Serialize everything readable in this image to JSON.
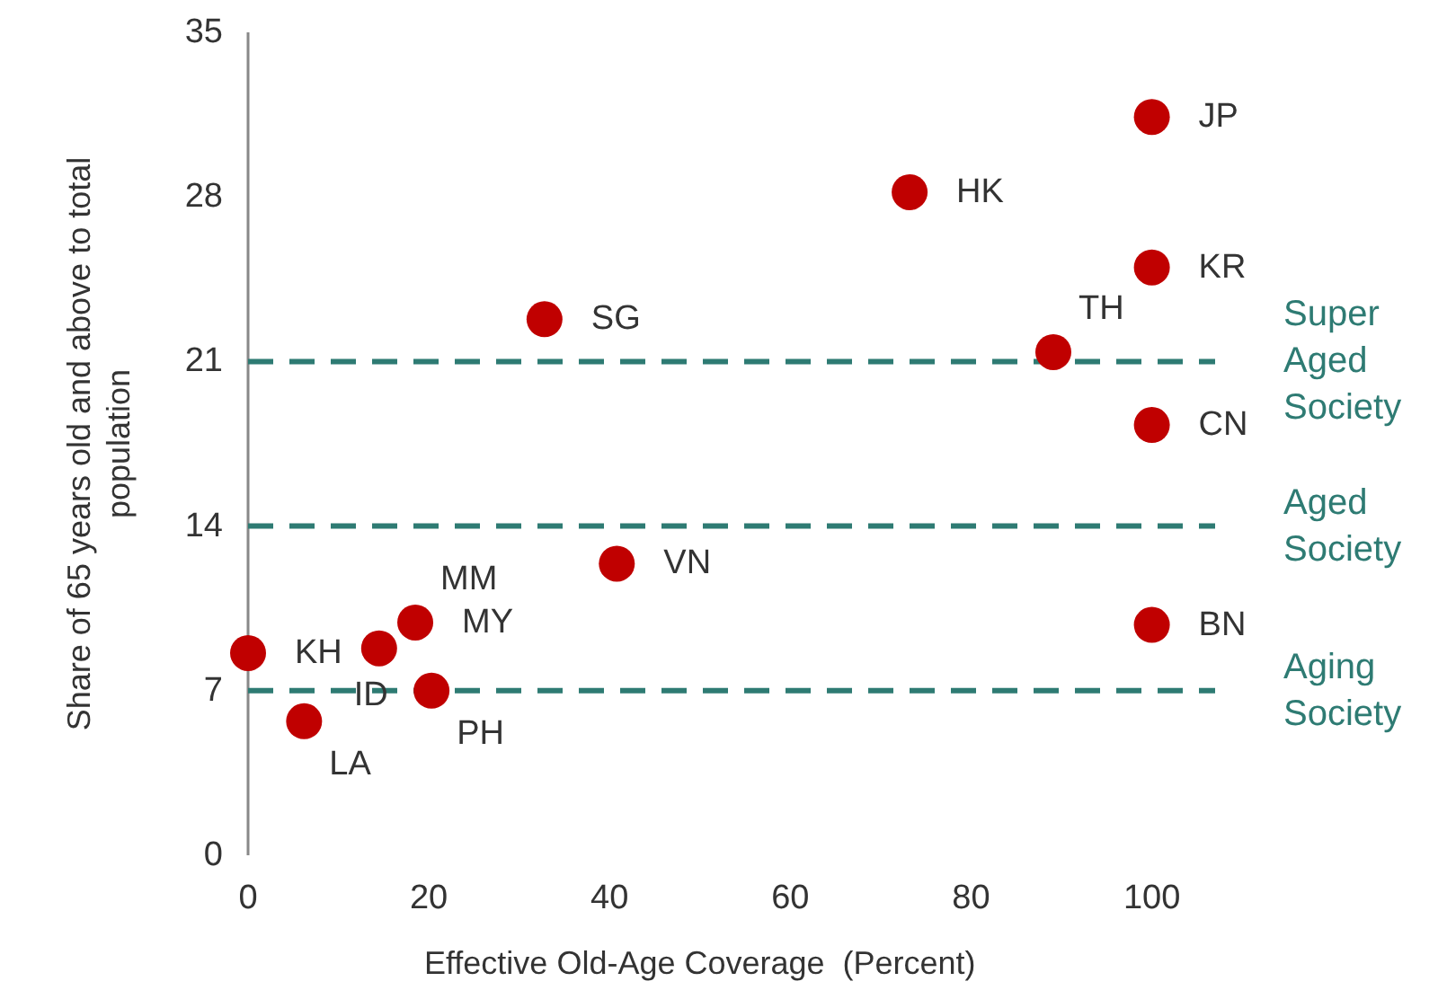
{
  "chart_data": {
    "type": "scatter",
    "xlabel": "Effective Old-Age Coverage  (Percent)",
    "ylabel": "Share of 65 years old and above to total population",
    "x": [
      100,
      73.2,
      100,
      32.8,
      89.1,
      100,
      40.8,
      100,
      18.5,
      14.5,
      0,
      20.3,
      6.2
    ],
    "series": [
      {
        "color": "#c00000",
        "values": [
          31.4,
          28.2,
          25.0,
          22.8,
          21.4,
          18.3,
          12.4,
          9.8,
          9.9,
          8.8,
          8.6,
          7.0,
          5.7
        ]
      }
    ],
    "annotations": [
      {
        "text": "JP",
        "x": 100,
        "y": 31.4
      },
      {
        "text": "HK",
        "x": 73.2,
        "y": 28.2
      },
      {
        "text": "KR",
        "x": 100,
        "y": 25.0
      },
      {
        "text": "SG",
        "x": 32.8,
        "y": 22.8
      },
      {
        "text": "TH",
        "x": 89.1,
        "y": 21.4
      },
      {
        "text": "CN",
        "x": 100,
        "y": 18.3
      },
      {
        "text": "VN",
        "x": 40.8,
        "y": 12.4
      },
      {
        "text": "BN",
        "x": 100,
        "y": 9.8
      },
      {
        "text": "MY",
        "x": 18.5,
        "y": 9.9
      },
      {
        "text": "MM",
        "x": 18.5,
        "y": 9.9
      },
      {
        "text": "ID",
        "x": 14.5,
        "y": 8.8
      },
      {
        "text": "KH",
        "x": 0,
        "y": 8.6
      },
      {
        "text": "PH",
        "x": 20.3,
        "y": 7.0
      },
      {
        "text": "LA",
        "x": 6.2,
        "y": 5.7
      }
    ],
    "ref_lines": [
      {
        "axis": "y",
        "value": 21,
        "label": "Super Aged Society",
        "color": "#2e7b73",
        "line_style": "dashed"
      },
      {
        "axis": "y",
        "value": 14,
        "label": "Aged Society",
        "color": "#2e7b73",
        "line_style": "dashed"
      },
      {
        "axis": "y",
        "value": 7,
        "label": "Aging Society",
        "color": "#2e7b73",
        "line_style": "dashed"
      }
    ],
    "xlim": [
      0,
      107
    ],
    "xticks": [
      0,
      20,
      40,
      60,
      80,
      100
    ],
    "ylim": [
      0,
      35
    ],
    "yticks": [
      0,
      7,
      14,
      21,
      28,
      35
    ],
    "grid": false,
    "marker": "circle"
  }
}
